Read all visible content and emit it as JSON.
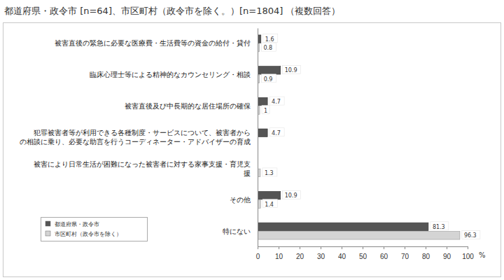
{
  "chart_data": {
    "type": "bar",
    "orientation": "horizontal",
    "title": "都道府県・政令市 [n=64]、市区町村（政令市を除く。）[n=1804] （複数回答）",
    "x_label": "%",
    "categories": [
      "被害直後の緊急に必要な医療費・生活費等の資金の給付・貸付",
      "臨床心理士等による精神的なカウンセリング・相談",
      "被害直後及び中長期的な居住場所の確保",
      "犯罪被害者等が利用できる各種制度・サービスについて、被害者から\nの相談に乗り、必要な助言を行うコーディネーター・アドバイザーの育成",
      "被害により日常生活が困難になった被害者に対する家事支援・育児支\n援",
      "その他",
      "特にない"
    ],
    "series": [
      {
        "name": "都道府県・政令市",
        "color": "#555555",
        "values": [
          1.6,
          10.9,
          4.7,
          4.7,
          null,
          10.9,
          81.3
        ]
      },
      {
        "name": "市区町村（政令市を除く）",
        "color": "#d4d4d4",
        "values": [
          0.8,
          0.9,
          1,
          null,
          1.3,
          1.4,
          96.3
        ]
      }
    ],
    "xlim": [
      0,
      100
    ],
    "xticks": [
      0,
      10,
      20,
      30,
      40,
      50,
      60,
      70,
      80,
      90,
      100
    ],
    "grid": false,
    "data_labels": true,
    "legend": "lower left"
  }
}
